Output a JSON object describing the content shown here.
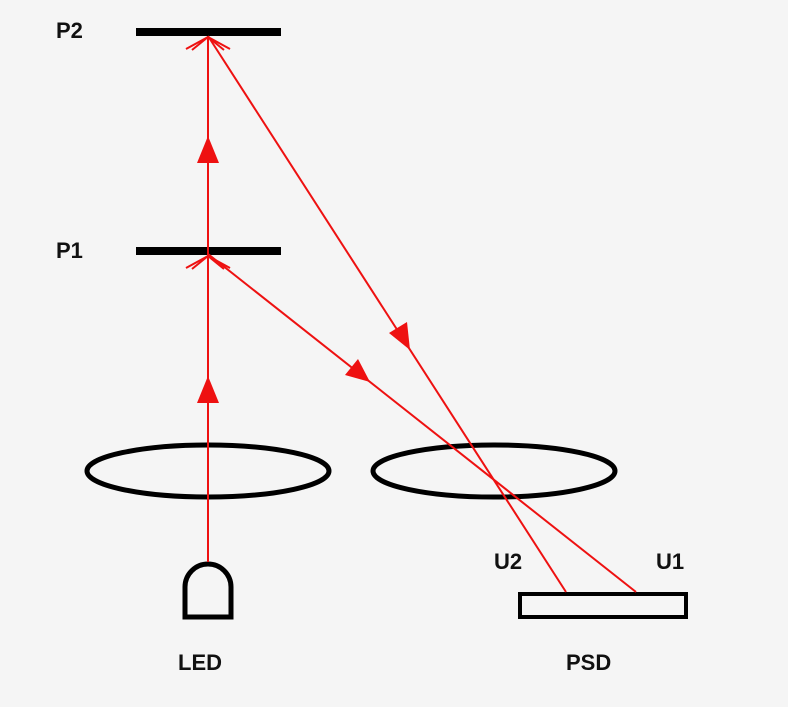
{
  "labels": {
    "p2": "P2",
    "p1": "P1",
    "u2": "U2",
    "u1": "U1",
    "led": "LED",
    "psd": "PSD"
  },
  "colors": {
    "beam": "#ee1111",
    "component": "#000000",
    "background": "#f5f5f5"
  }
}
